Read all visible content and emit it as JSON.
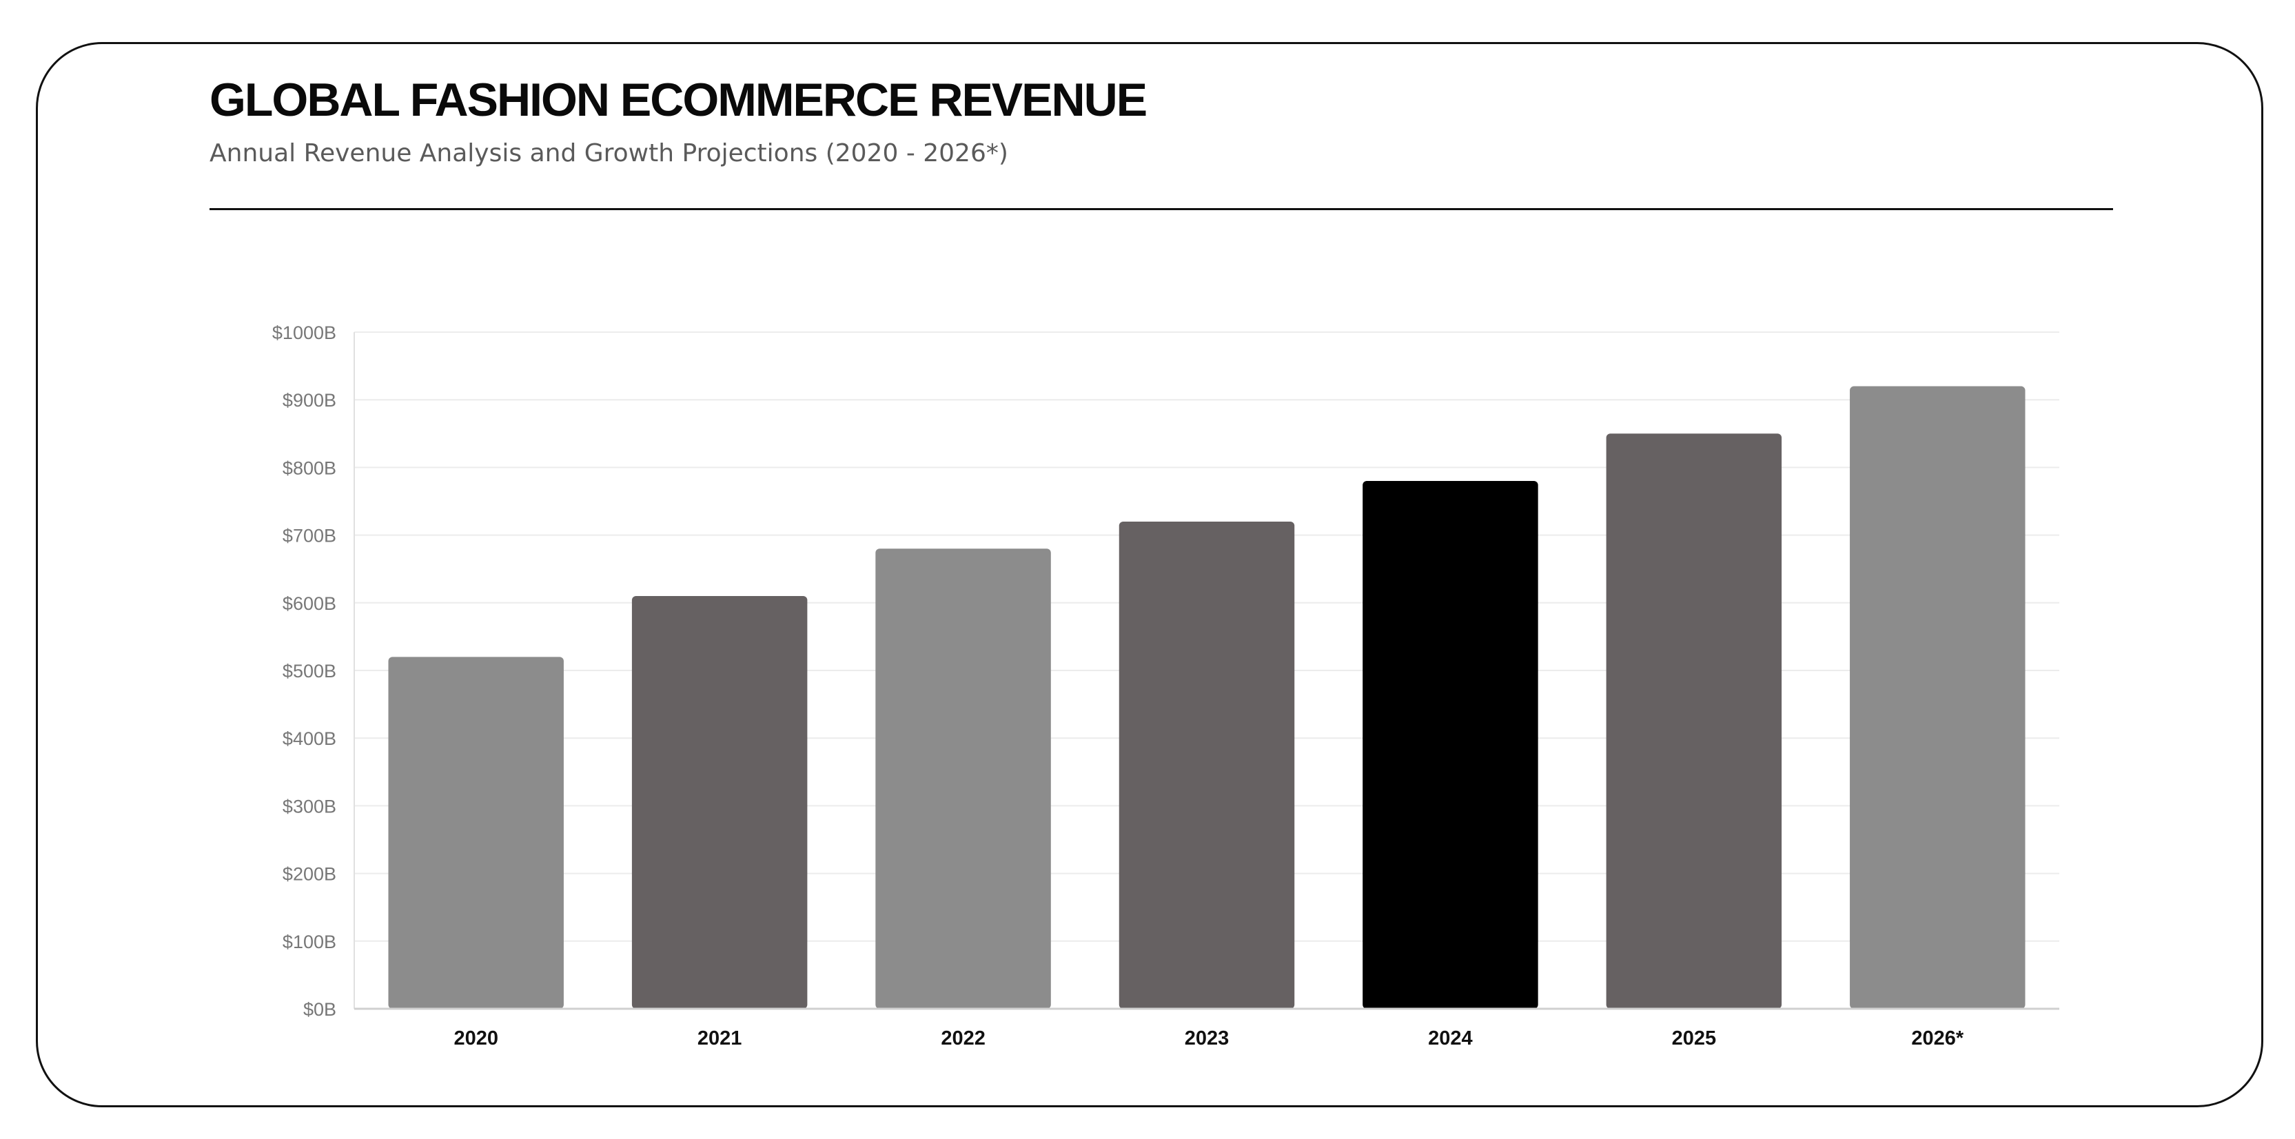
{
  "header": {
    "title": "GLOBAL FASHION ECOMMERCE REVENUE",
    "subtitle": "Annual Revenue Analysis and Growth Projections (2020 - 2026*)"
  },
  "chart_data": {
    "type": "bar",
    "title": "",
    "xlabel": "",
    "ylabel": "",
    "categories": [
      "2020",
      "2021",
      "2022",
      "2023",
      "2024",
      "2025",
      "2026*"
    ],
    "values": [
      520,
      610,
      680,
      720,
      780,
      850,
      920
    ],
    "ylim": [
      0,
      1000
    ],
    "yticks": [
      0,
      100,
      200,
      300,
      400,
      500,
      600,
      700,
      800,
      900,
      1000
    ],
    "ytick_labels": [
      "$0B",
      "$100B",
      "$200B",
      "$300B",
      "$400B",
      "$500B",
      "$600B",
      "$700B",
      "$800B",
      "$900B",
      "$1000B"
    ],
    "bar_colors": [
      "#8c8c8c",
      "#666162",
      "#8c8c8c",
      "#666162",
      "#000000",
      "#666162",
      "#8c8c8c"
    ],
    "grid": true,
    "legend": "none"
  }
}
